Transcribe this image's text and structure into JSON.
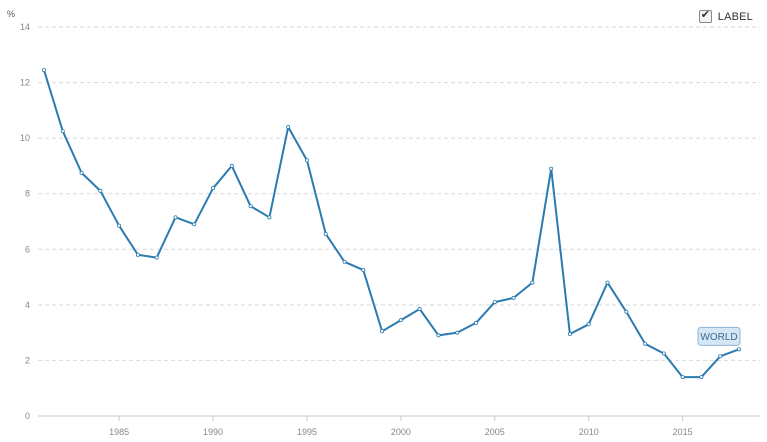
{
  "legend": {
    "label": "LABEL",
    "checked": true
  },
  "colors": {
    "line": "#2b7bb0",
    "grid": "#d9d9d9",
    "badge_fill": "#d5e6f4",
    "badge_stroke": "#8fb3d4"
  },
  "chart_data": {
    "type": "line",
    "unit_label": "%",
    "x": [
      1981,
      1982,
      1983,
      1984,
      1985,
      1986,
      1987,
      1988,
      1989,
      1990,
      1991,
      1992,
      1993,
      1994,
      1995,
      1996,
      1997,
      1998,
      1999,
      2000,
      2001,
      2002,
      2003,
      2004,
      2005,
      2006,
      2007,
      2008,
      2009,
      2010,
      2011,
      2012,
      2013,
      2014,
      2015,
      2016,
      2017,
      2018
    ],
    "series": [
      {
        "name": "WORLD",
        "values": [
          12.45,
          10.25,
          8.75,
          8.1,
          6.85,
          5.8,
          5.7,
          7.15,
          6.9,
          8.2,
          9.0,
          7.55,
          7.15,
          10.4,
          9.2,
          6.55,
          5.55,
          5.25,
          3.05,
          3.45,
          3.85,
          2.9,
          3.0,
          3.35,
          4.1,
          4.25,
          4.8,
          8.9,
          2.95,
          3.3,
          4.8,
          3.75,
          2.6,
          2.25,
          1.4,
          1.4,
          2.15,
          2.4
        ]
      }
    ],
    "xticks": [
      1985,
      1990,
      1995,
      2000,
      2005,
      2010,
      2015
    ],
    "yticks": [
      0,
      2,
      4,
      6,
      8,
      10,
      12,
      14
    ],
    "xlim": [
      1981,
      2018
    ],
    "ylim": [
      0,
      14
    ],
    "grid": true,
    "legend_position": "top-right"
  }
}
